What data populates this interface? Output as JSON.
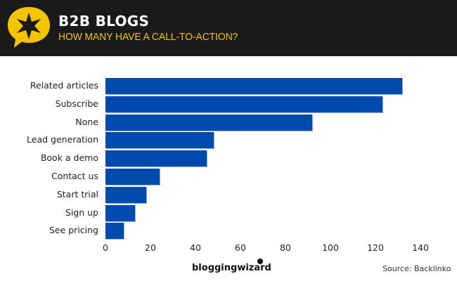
{
  "header": {
    "title": "B2B BLOGS",
    "subtitle": "HOW MANY HAVE A CALL-TO-ACTION?",
    "logo_icon": "speech-bubble-star-icon",
    "colors": {
      "background": "#1a1a1a",
      "title": "#ffffff",
      "subtitle": "#f5c400",
      "logo": "#f5c400"
    }
  },
  "footer": {
    "brand": "bloggingwizard",
    "source": "Source: Backlinko"
  },
  "chart_data": {
    "type": "bar",
    "orientation": "horizontal",
    "title": "B2B BLOGS",
    "subtitle": "HOW MANY HAVE A CALL-TO-ACTION?",
    "categories": [
      "Related articles",
      "Subscribe",
      "None",
      "Lead generation",
      "Book a demo",
      "Contact us",
      "Start trial",
      "Sign up",
      "See pricing"
    ],
    "values": [
      132,
      123,
      92,
      48,
      45,
      24,
      18,
      13,
      8
    ],
    "xlabel": "",
    "ylabel": "",
    "xlim": [
      0,
      140
    ],
    "x_ticks": [
      "0",
      "20",
      "40",
      "60",
      "80",
      "100",
      "120",
      "140"
    ],
    "grid": false,
    "legend": null,
    "bar_color": "#004aad"
  }
}
